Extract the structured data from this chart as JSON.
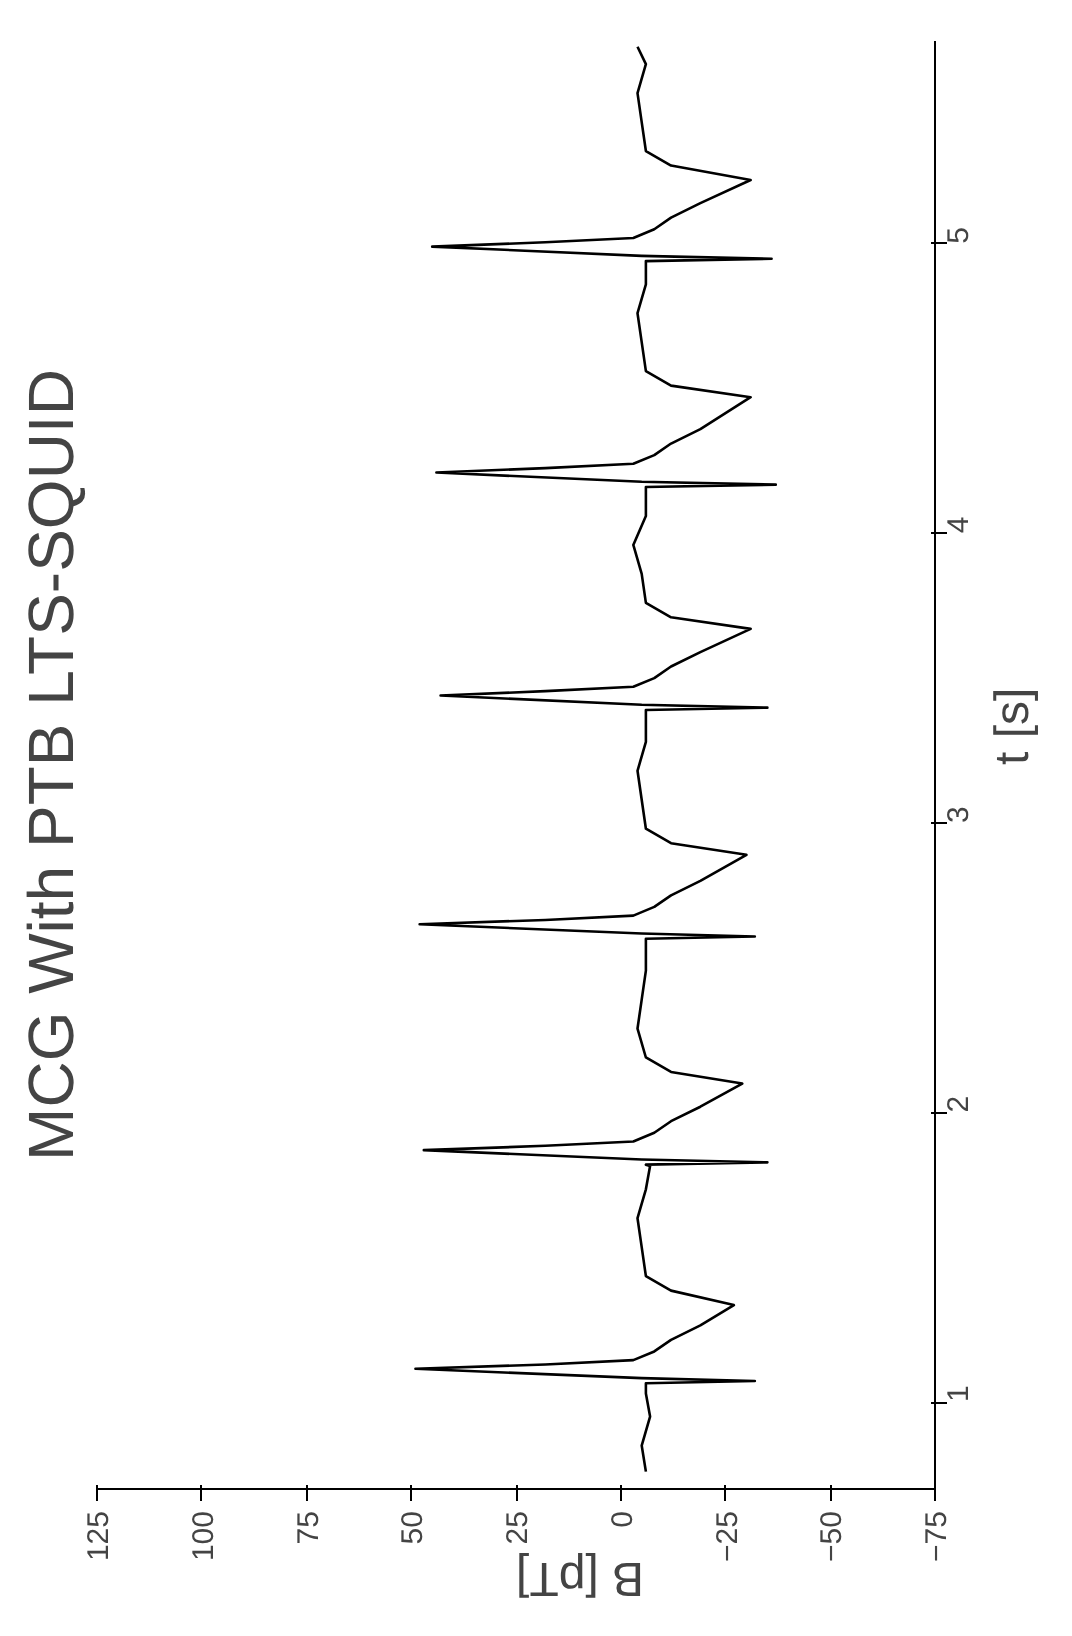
{
  "chart_data": {
    "type": "line",
    "title": "MCG With PTB LTS-SQUID",
    "xlabel": "B [pT]",
    "ylabel": "t [s]",
    "color": "#000000",
    "grid": false,
    "xlim": [
      125,
      -75
    ],
    "xticks": [
      125,
      100,
      75,
      50,
      25,
      0,
      -25,
      -50,
      -75
    ],
    "ylim": [
      0.7,
      5.7
    ],
    "yticks": [
      1,
      2,
      3,
      4,
      5
    ],
    "x": [
      -6,
      -5,
      -7,
      -6,
      -6,
      -32,
      -5,
      49,
      18,
      -3,
      -8,
      -12,
      -19,
      -27,
      -12,
      -6,
      -5,
      -4,
      -6,
      -7,
      -6,
      -35,
      -5,
      47,
      18,
      -3,
      -8,
      -12,
      -19,
      -29,
      -12,
      -6,
      -4,
      -5,
      -6,
      -6,
      -32,
      -5,
      48,
      18,
      -3,
      -8,
      -12,
      -19,
      -30,
      -12,
      -6,
      -5,
      -4,
      -6,
      -6,
      -35,
      -5,
      43,
      18,
      -3,
      -8,
      -12,
      -19,
      -31,
      -12,
      -6,
      -5,
      -3,
      -6,
      -6,
      -37,
      -5,
      44,
      18,
      -3,
      -8,
      -12,
      -19,
      -31,
      -12,
      -6,
      -5,
      -4,
      -6,
      -6,
      -36,
      -5,
      45,
      18,
      -3,
      -8,
      -12,
      -19,
      -31,
      -12,
      -6,
      -5,
      -4,
      -6,
      -4
    ],
    "values": [
      0.76,
      0.85,
      0.95,
      1.03,
      1.065,
      1.073,
      1.083,
      1.115,
      1.13,
      1.145,
      1.175,
      1.215,
      1.265,
      1.335,
      1.385,
      1.435,
      1.535,
      1.635,
      1.735,
      1.815,
      1.82,
      1.828,
      1.838,
      1.87,
      1.885,
      1.9,
      1.93,
      1.97,
      2.02,
      2.1,
      2.14,
      2.19,
      2.29,
      2.39,
      2.49,
      2.6,
      2.608,
      2.618,
      2.65,
      2.665,
      2.68,
      2.71,
      2.75,
      2.8,
      2.89,
      2.93,
      2.98,
      3.08,
      3.18,
      3.28,
      3.39,
      3.398,
      3.408,
      3.44,
      3.455,
      3.47,
      3.5,
      3.54,
      3.59,
      3.67,
      3.71,
      3.76,
      3.86,
      3.96,
      4.06,
      4.16,
      4.168,
      4.178,
      4.21,
      4.225,
      4.24,
      4.27,
      4.31,
      4.36,
      4.47,
      4.51,
      4.56,
      4.66,
      4.76,
      4.86,
      4.94,
      4.948,
      4.958,
      4.99,
      5.005,
      5.02,
      5.05,
      5.09,
      5.14,
      5.22,
      5.27,
      5.32,
      5.42,
      5.52,
      5.62,
      5.68
    ]
  }
}
